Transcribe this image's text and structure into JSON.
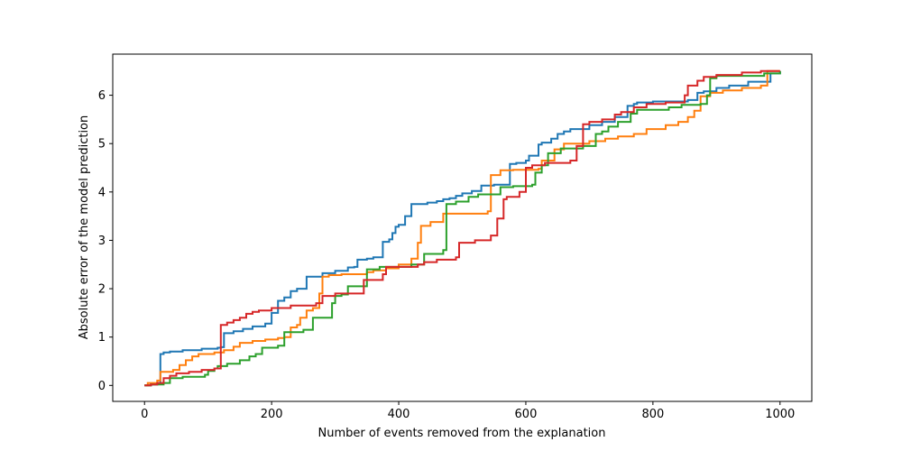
{
  "chart_data": {
    "type": "line",
    "title": "",
    "xlabel": "Number of events removed from the explanation",
    "ylabel": "Absolute error of the model prediction",
    "xlim": [
      -50,
      1050
    ],
    "ylim": [
      -0.33,
      6.85
    ],
    "xticks": [
      0,
      200,
      400,
      600,
      800,
      1000
    ],
    "yticks": [
      0,
      1,
      2,
      3,
      4,
      5,
      6
    ],
    "grid": false,
    "legend": "none",
    "step": true,
    "series": [
      {
        "color": "#1f77b4",
        "points": [
          [
            0,
            0
          ],
          [
            10,
            0.02
          ],
          [
            20,
            0.05
          ],
          [
            25,
            0.65
          ],
          [
            30,
            0.68
          ],
          [
            40,
            0.7
          ],
          [
            60,
            0.73
          ],
          [
            90,
            0.76
          ],
          [
            115,
            0.78
          ],
          [
            120,
            0.79
          ],
          [
            125,
            1.08
          ],
          [
            140,
            1.12
          ],
          [
            155,
            1.17
          ],
          [
            170,
            1.22
          ],
          [
            190,
            1.28
          ],
          [
            200,
            1.5
          ],
          [
            210,
            1.75
          ],
          [
            220,
            1.82
          ],
          [
            230,
            1.95
          ],
          [
            240,
            2.0
          ],
          [
            255,
            2.25
          ],
          [
            265,
            2.25
          ],
          [
            280,
            2.32
          ],
          [
            300,
            2.37
          ],
          [
            320,
            2.44
          ],
          [
            330,
            2.45
          ],
          [
            335,
            2.6
          ],
          [
            350,
            2.62
          ],
          [
            360,
            2.65
          ],
          [
            375,
            2.97
          ],
          [
            385,
            3.02
          ],
          [
            390,
            3.15
          ],
          [
            395,
            3.28
          ],
          [
            400,
            3.32
          ],
          [
            410,
            3.5
          ],
          [
            420,
            3.75
          ],
          [
            445,
            3.78
          ],
          [
            460,
            3.81
          ],
          [
            470,
            3.85
          ],
          [
            480,
            3.87
          ],
          [
            490,
            3.92
          ],
          [
            500,
            3.97
          ],
          [
            515,
            4.02
          ],
          [
            530,
            4.13
          ],
          [
            550,
            4.15
          ],
          [
            575,
            4.58
          ],
          [
            585,
            4.6
          ],
          [
            600,
            4.65
          ],
          [
            605,
            4.75
          ],
          [
            620,
            4.98
          ],
          [
            625,
            5.02
          ],
          [
            640,
            5.1
          ],
          [
            650,
            5.2
          ],
          [
            660,
            5.25
          ],
          [
            670,
            5.3
          ],
          [
            700,
            5.38
          ],
          [
            720,
            5.45
          ],
          [
            740,
            5.55
          ],
          [
            760,
            5.78
          ],
          [
            770,
            5.82
          ],
          [
            775,
            5.85
          ],
          [
            800,
            5.87
          ],
          [
            855,
            5.9
          ],
          [
            870,
            6.05
          ],
          [
            880,
            6.08
          ],
          [
            900,
            6.15
          ],
          [
            920,
            6.2
          ],
          [
            950,
            6.28
          ],
          [
            985,
            6.45
          ],
          [
            1000,
            6.5
          ]
        ]
      },
      {
        "color": "#ff7f0e",
        "points": [
          [
            0,
            0
          ],
          [
            5,
            0.05
          ],
          [
            20,
            0.1
          ],
          [
            25,
            0.28
          ],
          [
            45,
            0.32
          ],
          [
            55,
            0.42
          ],
          [
            65,
            0.52
          ],
          [
            75,
            0.6
          ],
          [
            85,
            0.65
          ],
          [
            110,
            0.68
          ],
          [
            125,
            0.73
          ],
          [
            140,
            0.8
          ],
          [
            150,
            0.88
          ],
          [
            170,
            0.92
          ],
          [
            190,
            0.95
          ],
          [
            210,
            0.98
          ],
          [
            220,
            1.0
          ],
          [
            230,
            1.2
          ],
          [
            240,
            1.25
          ],
          [
            245,
            1.4
          ],
          [
            255,
            1.55
          ],
          [
            265,
            1.6
          ],
          [
            275,
            1.9
          ],
          [
            280,
            2.25
          ],
          [
            290,
            2.28
          ],
          [
            310,
            2.3
          ],
          [
            350,
            2.34
          ],
          [
            360,
            2.38
          ],
          [
            380,
            2.42
          ],
          [
            400,
            2.5
          ],
          [
            420,
            2.62
          ],
          [
            430,
            2.95
          ],
          [
            435,
            3.3
          ],
          [
            450,
            3.38
          ],
          [
            470,
            3.55
          ],
          [
            540,
            3.6
          ],
          [
            545,
            4.35
          ],
          [
            560,
            4.45
          ],
          [
            580,
            4.46
          ],
          [
            620,
            4.48
          ],
          [
            625,
            4.65
          ],
          [
            645,
            4.88
          ],
          [
            660,
            5.0
          ],
          [
            700,
            5.05
          ],
          [
            725,
            5.1
          ],
          [
            745,
            5.15
          ],
          [
            770,
            5.2
          ],
          [
            790,
            5.3
          ],
          [
            820,
            5.38
          ],
          [
            840,
            5.45
          ],
          [
            855,
            5.55
          ],
          [
            865,
            5.68
          ],
          [
            875,
            5.98
          ],
          [
            890,
            6.05
          ],
          [
            910,
            6.1
          ],
          [
            940,
            6.15
          ],
          [
            970,
            6.2
          ],
          [
            980,
            6.5
          ],
          [
            1000,
            6.5
          ]
        ]
      },
      {
        "color": "#2ca02c",
        "points": [
          [
            0,
            0
          ],
          [
            10,
            0.02
          ],
          [
            30,
            0.05
          ],
          [
            40,
            0.15
          ],
          [
            60,
            0.18
          ],
          [
            95,
            0.22
          ],
          [
            100,
            0.3
          ],
          [
            110,
            0.35
          ],
          [
            115,
            0.4
          ],
          [
            130,
            0.45
          ],
          [
            150,
            0.52
          ],
          [
            165,
            0.6
          ],
          [
            175,
            0.65
          ],
          [
            185,
            0.78
          ],
          [
            210,
            0.82
          ],
          [
            220,
            1.1
          ],
          [
            250,
            1.15
          ],
          [
            265,
            1.4
          ],
          [
            295,
            1.7
          ],
          [
            300,
            1.85
          ],
          [
            310,
            1.88
          ],
          [
            320,
            2.05
          ],
          [
            350,
            2.4
          ],
          [
            370,
            2.45
          ],
          [
            420,
            2.5
          ],
          [
            440,
            2.72
          ],
          [
            470,
            2.8
          ],
          [
            475,
            3.75
          ],
          [
            490,
            3.8
          ],
          [
            510,
            3.9
          ],
          [
            525,
            3.95
          ],
          [
            560,
            4.1
          ],
          [
            580,
            4.12
          ],
          [
            610,
            4.15
          ],
          [
            615,
            4.4
          ],
          [
            625,
            4.55
          ],
          [
            635,
            4.8
          ],
          [
            655,
            4.9
          ],
          [
            690,
            4.95
          ],
          [
            710,
            5.2
          ],
          [
            720,
            5.25
          ],
          [
            730,
            5.35
          ],
          [
            745,
            5.45
          ],
          [
            765,
            5.62
          ],
          [
            775,
            5.7
          ],
          [
            825,
            5.75
          ],
          [
            845,
            5.8
          ],
          [
            875,
            5.82
          ],
          [
            885,
            6.0
          ],
          [
            890,
            6.35
          ],
          [
            900,
            6.4
          ],
          [
            975,
            6.45
          ],
          [
            1000,
            6.5
          ]
        ]
      },
      {
        "color": "#d62728",
        "points": [
          [
            0,
            0
          ],
          [
            10,
            0.02
          ],
          [
            20,
            0.05
          ],
          [
            30,
            0.15
          ],
          [
            40,
            0.2
          ],
          [
            50,
            0.25
          ],
          [
            70,
            0.28
          ],
          [
            90,
            0.32
          ],
          [
            110,
            0.35
          ],
          [
            120,
            1.25
          ],
          [
            130,
            1.3
          ],
          [
            140,
            1.35
          ],
          [
            150,
            1.4
          ],
          [
            160,
            1.48
          ],
          [
            170,
            1.52
          ],
          [
            180,
            1.55
          ],
          [
            200,
            1.6
          ],
          [
            230,
            1.65
          ],
          [
            270,
            1.7
          ],
          [
            280,
            1.85
          ],
          [
            300,
            1.9
          ],
          [
            325,
            1.9
          ],
          [
            345,
            2.18
          ],
          [
            375,
            2.3
          ],
          [
            380,
            2.45
          ],
          [
            430,
            2.5
          ],
          [
            440,
            2.55
          ],
          [
            460,
            2.6
          ],
          [
            490,
            2.65
          ],
          [
            495,
            2.95
          ],
          [
            520,
            3.0
          ],
          [
            545,
            3.1
          ],
          [
            555,
            3.45
          ],
          [
            565,
            3.85
          ],
          [
            570,
            3.9
          ],
          [
            590,
            4.0
          ],
          [
            600,
            4.5
          ],
          [
            610,
            4.55
          ],
          [
            630,
            4.6
          ],
          [
            670,
            4.65
          ],
          [
            680,
            4.95
          ],
          [
            690,
            5.4
          ],
          [
            700,
            5.45
          ],
          [
            720,
            5.5
          ],
          [
            740,
            5.6
          ],
          [
            750,
            5.65
          ],
          [
            770,
            5.75
          ],
          [
            790,
            5.82
          ],
          [
            820,
            5.85
          ],
          [
            850,
            6.0
          ],
          [
            855,
            6.2
          ],
          [
            870,
            6.3
          ],
          [
            880,
            6.38
          ],
          [
            900,
            6.42
          ],
          [
            940,
            6.47
          ],
          [
            970,
            6.5
          ],
          [
            1000,
            6.5
          ]
        ]
      }
    ]
  }
}
